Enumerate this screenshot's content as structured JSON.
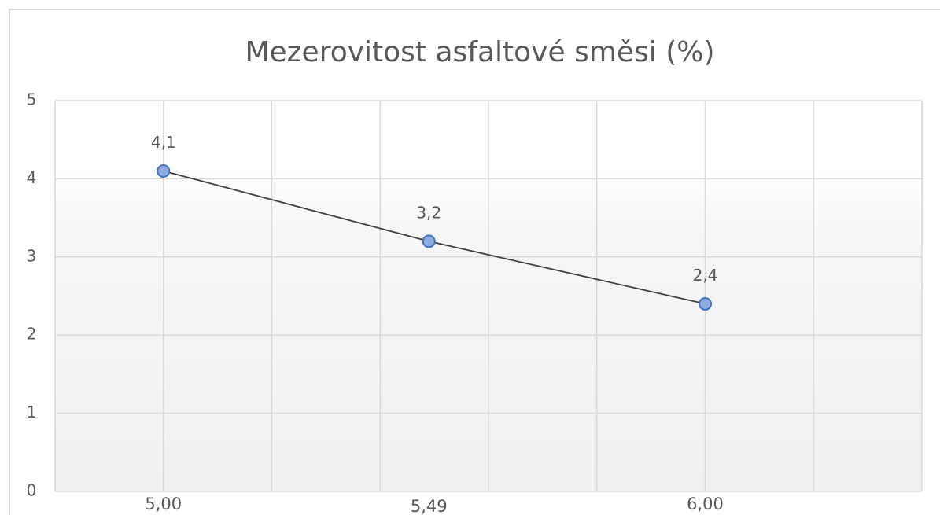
{
  "chart_data": {
    "type": "scatter_line",
    "title": "Mezerovitost asfaltové směsi (%)",
    "x": [
      5.0,
      5.49,
      6.0
    ],
    "values": [
      4.1,
      3.2,
      2.4
    ],
    "value_labels": [
      "4,1",
      "3,2",
      "2,4"
    ],
    "color": "#8faadc",
    "line_color": "#404040",
    "xlim": [
      4.8,
      6.4
    ],
    "xticks": [
      {
        "value": 5.0,
        "label": "5,00"
      },
      {
        "value": 5.49,
        "label": "5,49"
      },
      {
        "value": 6.0,
        "label": "6,00"
      }
    ],
    "xgrid": [
      4.8,
      5.0,
      5.2,
      5.4,
      5.6,
      5.8,
      6.0,
      6.2,
      6.4
    ],
    "ylim": [
      0,
      5
    ],
    "yticks": [
      0,
      1,
      2,
      3,
      4,
      5
    ],
    "grid": true
  }
}
